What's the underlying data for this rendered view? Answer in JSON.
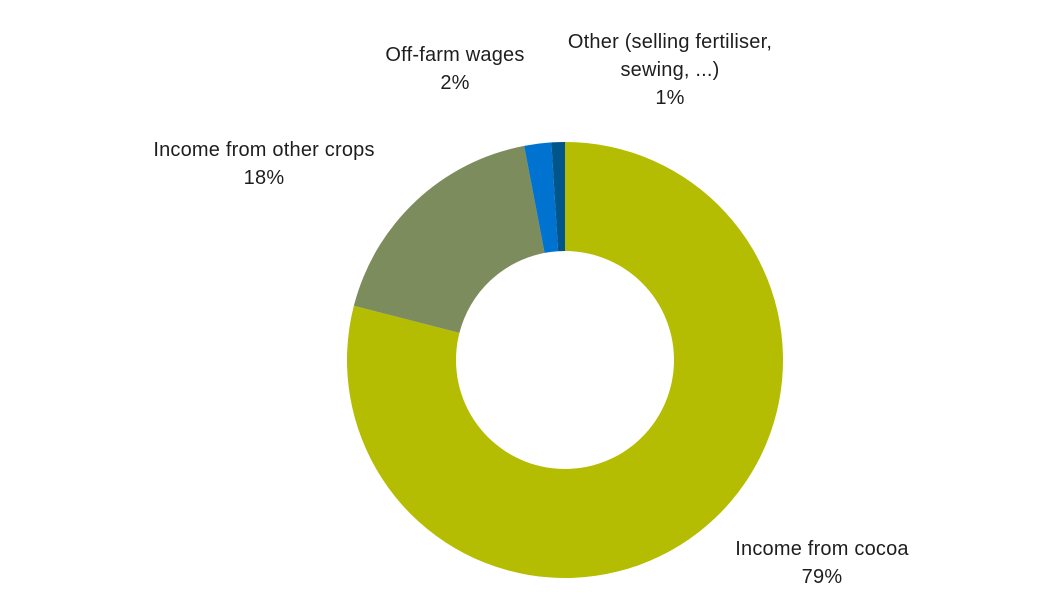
{
  "chart_data": {
    "type": "pie",
    "subtype": "donut",
    "categories": [
      "Income from cocoa",
      "Income from other crops",
      "Off-farm wages",
      "Other (selling fertiliser, sewing, ...)"
    ],
    "values": [
      79,
      18,
      2,
      1
    ],
    "unit": "%",
    "colors": [
      "#b5bd02",
      "#7d8c5c",
      "#0072cf",
      "#00568a"
    ],
    "donut_hole_ratio": 0.5,
    "start_angle": "top",
    "direction": "clockwise",
    "legend_position": "none",
    "data_labels": "outside, category name + percent"
  },
  "labels": {
    "cocoa": {
      "line1": "Income from cocoa",
      "value": "79%"
    },
    "other_crops": {
      "line1": "Income from other crops",
      "value": "18%"
    },
    "off_farm": {
      "line1": "Off-farm wages",
      "value": "2%"
    },
    "other": {
      "line1": "Other (selling fertiliser,",
      "line2": "sewing, ...)",
      "value": "1%"
    }
  },
  "style": {
    "background": "#ffffff",
    "text_color": "#1e1e1e"
  }
}
